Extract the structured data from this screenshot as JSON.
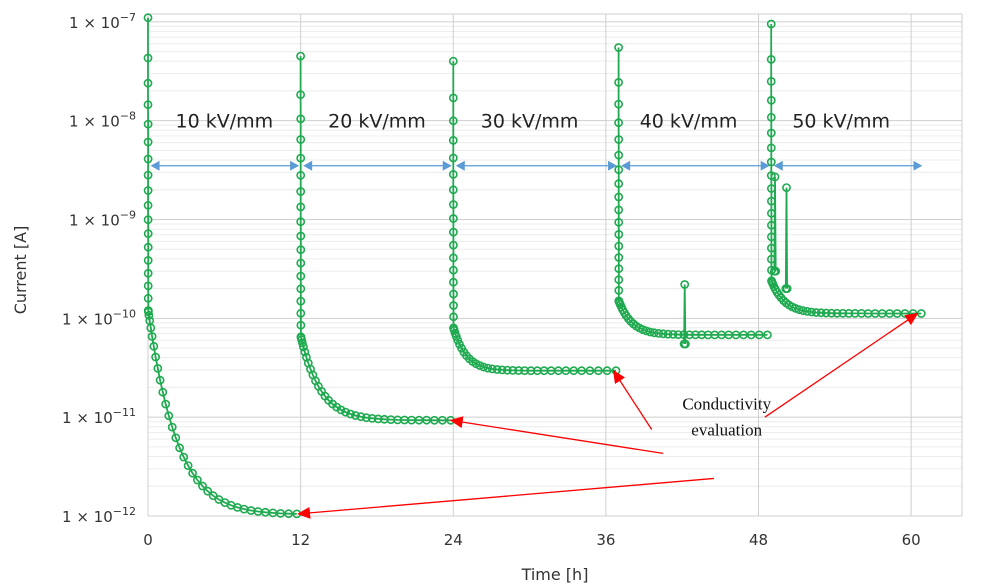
{
  "chart_data": {
    "type": "scatter",
    "title": "",
    "xlabel": "Time [h]",
    "ylabel": "Current [A]",
    "y_scale": "log",
    "xlim": [
      0,
      64
    ],
    "ylim": [
      1e-12,
      1.2e-07
    ],
    "grid": true,
    "x_ticks": [
      {
        "value": 0,
        "label": "0"
      },
      {
        "value": 12,
        "label": "12"
      },
      {
        "value": 24,
        "label": "24"
      },
      {
        "value": 36,
        "label": "36"
      },
      {
        "value": 48,
        "label": "48"
      },
      {
        "value": 60,
        "label": "60"
      }
    ],
    "y_ticks": [
      {
        "value": 1e-12,
        "mant": "1 × 10",
        "exp": "−12"
      },
      {
        "value": 1e-11,
        "mant": "1 × 10",
        "exp": "−11"
      },
      {
        "value": 1e-10,
        "mant": "1 × 10",
        "exp": "−10"
      },
      {
        "value": 1e-09,
        "mant": "1 × 10",
        "exp": "−9"
      },
      {
        "value": 1e-08,
        "mant": "1 × 10",
        "exp": "−8"
      },
      {
        "value": 1e-07,
        "mant": "1 × 10",
        "exp": "−7"
      }
    ],
    "series_color": "#1faa50",
    "arrow_color": "#5b9bd5",
    "annotation_color": "#ff0000",
    "series": [
      {
        "segments": [
          {
            "t0": 0.0,
            "t1": 11.7,
            "peak": 1.1e-07,
            "after": 1.2e-10,
            "end": 1.05e-12,
            "k": 1.4
          },
          {
            "t0": 12.0,
            "t1": 23.8,
            "peak": 4.5e-08,
            "after": 6.5e-11,
            "end": 9.3e-12,
            "k": 2.2
          },
          {
            "t0": 24.0,
            "t1": 36.8,
            "peak": 4e-08,
            "after": 8e-11,
            "end": 2.95e-11,
            "k": 4.0
          },
          {
            "t0": 37.0,
            "t1": 48.7,
            "peak": 5.5e-08,
            "after": 1.5e-10,
            "end": 6.8e-11,
            "k": 3.5
          },
          {
            "t0": 49.0,
            "t1": 60.8,
            "peak": 9.5e-08,
            "after": 2.4e-10,
            "end": 1.12e-10,
            "k": 3.5
          }
        ],
        "spikes": [
          {
            "t": 42.2,
            "lo": 5.5e-11,
            "hi": 2.2e-10
          },
          {
            "t": 50.2,
            "lo": 2e-10,
            "hi": 2.1e-09
          },
          {
            "t": 49.3,
            "lo": 3e-10,
            "hi": 2.7e-09
          }
        ]
      }
    ],
    "field_labels": [
      {
        "text": "10 kV/mm",
        "x": 6,
        "y": 1e-08
      },
      {
        "text": "20 kV/mm",
        "x": 18,
        "y": 1e-08
      },
      {
        "text": "30 kV/mm",
        "x": 30,
        "y": 1e-08
      },
      {
        "text": "40 kV/mm",
        "x": 42.5,
        "y": 1e-08
      },
      {
        "text": "50 kV/mm",
        "x": 54.5,
        "y": 1e-08
      }
    ],
    "field_arrows": [
      {
        "x0": 0.2,
        "x1": 11.8,
        "y": 3.5e-09
      },
      {
        "x0": 12.2,
        "x1": 23.8,
        "y": 3.5e-09
      },
      {
        "x0": 24.2,
        "x1": 36.8,
        "y": 3.5e-09
      },
      {
        "x0": 37.2,
        "x1": 48.8,
        "y": 3.5e-09
      },
      {
        "x0": 49.2,
        "x1": 60.8,
        "y": 3.5e-09
      }
    ],
    "annotation": {
      "lines": [
        "Conductivity",
        "evaluation"
      ],
      "x": 45.5,
      "y": 1.2e-11,
      "arrows": [
        {
          "from_x": 44.5,
          "from_y": 2.4e-12,
          "to_x": 11.8,
          "to_y": 1.05e-12
        },
        {
          "from_x": 40.5,
          "from_y": 4.3e-12,
          "to_x": 23.8,
          "to_y": 9.3e-12
        },
        {
          "from_x": 39.6,
          "from_y": 7.5e-12,
          "to_x": 36.6,
          "to_y": 2.95e-11
        },
        {
          "from_x": 48.5,
          "from_y": 1e-11,
          "to_x": 60.5,
          "to_y": 1.12e-10
        }
      ]
    }
  }
}
